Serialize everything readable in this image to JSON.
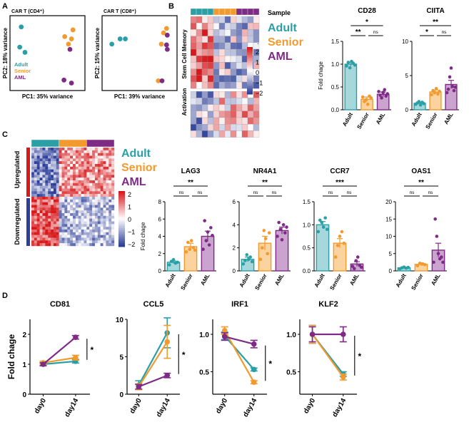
{
  "colors": {
    "adult": "#2a9fa6",
    "senior": "#f29a2e",
    "aml": "#7e2b86",
    "hm_high": "#d7191c",
    "hm_mid": "#ffffff",
    "hm_low": "#2c3e99"
  },
  "panels": {
    "a": "A",
    "b": "B",
    "c": "C",
    "d": "D"
  },
  "groups": [
    "Adult",
    "Senior",
    "AML"
  ],
  "sample_label": "Sample",
  "fold_label": "Fold chage",
  "heatmap_b": {
    "row_groups": [
      "Stem Cell Memory",
      "Activation"
    ],
    "scale_ticks": [
      "2",
      "1",
      "0",
      "−1",
      "−2"
    ],
    "scale_top": "·"
  },
  "heatmap_c": {
    "row_groups": [
      "Upregulated",
      "Downregulated"
    ],
    "scale_ticks": [
      "2",
      "1",
      "0",
      "−1",
      "−2"
    ]
  },
  "chart_data": [
    {
      "id": "pca_cd4",
      "type": "scatter",
      "title": "CAR T (CD4⁺)",
      "xlabel": "PC1: 35% variance",
      "ylabel": "PC2: 18% variance",
      "series": [
        {
          "name": "Adult",
          "x": [
            0.15,
            0.13,
            0.2
          ],
          "y": [
            0.85,
            0.58,
            0.51
          ]
        },
        {
          "name": "Senior",
          "x": [
            0.84,
            0.73,
            0.82,
            0.78
          ],
          "y": [
            0.81,
            0.72,
            0.69,
            0.62
          ]
        },
        {
          "name": "AML",
          "x": [
            0.8,
            0.72,
            0.82
          ],
          "y": [
            0.55,
            0.14,
            0.1
          ]
        }
      ],
      "legend": "bottom-left"
    },
    {
      "id": "pca_cd8",
      "type": "scatter",
      "title": "CAR T (CD8⁺)",
      "xlabel": "PC1: 39% variance",
      "ylabel": "PC2: 15% variance",
      "series": [
        {
          "name": "Adult",
          "x": [
            0.13,
            0.24,
            0.31
          ],
          "y": [
            0.62,
            0.69,
            0.69
          ]
        },
        {
          "name": "Senior",
          "x": [
            0.86,
            0.82,
            0.79,
            0.75
          ],
          "y": [
            0.83,
            0.77,
            0.62,
            0.13
          ]
        },
        {
          "name": "AML",
          "x": [
            0.87,
            0.86,
            0.87,
            0.8
          ],
          "y": [
            0.74,
            0.61,
            0.55,
            0.13
          ]
        }
      ]
    },
    {
      "id": "cd28",
      "type": "bar",
      "title": "CD28",
      "categories": [
        "Adult",
        "Senior",
        "AML"
      ],
      "values": [
        1.0,
        0.23,
        0.34
      ],
      "errors": [
        0.04,
        0.05,
        0.05
      ],
      "ylim": [
        0,
        1.5
      ],
      "yticks": [
        "0.0",
        "0.5",
        "1.0",
        "1.5"
      ],
      "points": [
        [
          0.96,
          1.04,
          0.92,
          1.06,
          1.02,
          0.98
        ],
        [
          0.28,
          0.18,
          0.22,
          0.12,
          0.3,
          0.26
        ],
        [
          0.4,
          0.32,
          0.26,
          0.38,
          0.44,
          0.3,
          0.35
        ]
      ],
      "sig": [
        {
          "from": 0,
          "to": 2,
          "label": "*",
          "level": 2
        },
        {
          "from": 0,
          "to": 1,
          "label": "**",
          "level": 1
        },
        {
          "from": 1,
          "to": 2,
          "label": "ns",
          "level": 1
        }
      ]
    },
    {
      "id": "ciita",
      "type": "bar",
      "title": "CIITA",
      "categories": [
        "Adult",
        "Senior",
        "AML"
      ],
      "values": [
        0.95,
        2.6,
        3.7
      ],
      "errors": [
        0.15,
        0.3,
        0.6
      ],
      "ylim": [
        0,
        10
      ],
      "yticks": [
        "0",
        "5",
        "10"
      ],
      "points": [
        [
          0.8,
          1.0,
          1.2,
          0.7,
          1.1,
          0.9
        ],
        [
          2.2,
          2.8,
          2.5,
          3.1,
          2.3,
          2.7
        ],
        [
          2.5,
          3.0,
          4.8,
          6.1,
          3.4,
          2.8,
          3.3
        ]
      ],
      "sig": [
        {
          "from": 0,
          "to": 2,
          "label": "**",
          "level": 2
        },
        {
          "from": 0,
          "to": 1,
          "label": "*",
          "level": 1
        },
        {
          "from": 1,
          "to": 2,
          "label": "ns",
          "level": 1
        }
      ]
    },
    {
      "id": "lag3",
      "type": "bar",
      "title": "LAG3",
      "categories": [
        "Adult",
        "Senior",
        "AML"
      ],
      "values": [
        1.0,
        2.8,
        4.0
      ],
      "errors": [
        0.15,
        0.4,
        0.6
      ],
      "ylim": [
        0,
        8
      ],
      "yticks": [
        "0",
        "2",
        "4",
        "6",
        "8"
      ],
      "points": [
        [
          0.7,
          1.1,
          1.3,
          0.9,
          1.0
        ],
        [
          2.2,
          3.3,
          2.5,
          3.5,
          2.7,
          2.4
        ],
        [
          2.5,
          5.8,
          3.5,
          4.5,
          3.0,
          5.0,
          4.1
        ]
      ],
      "sig": [
        {
          "from": 0,
          "to": 2,
          "label": "**",
          "level": 2
        },
        {
          "from": 0,
          "to": 1,
          "label": "ns",
          "level": 1
        },
        {
          "from": 1,
          "to": 2,
          "label": "ns",
          "level": 1
        }
      ]
    },
    {
      "id": "nr4a1",
      "type": "bar",
      "title": "NR4A1",
      "categories": [
        "Adult",
        "Senior",
        "AML"
      ],
      "values": [
        1.0,
        2.4,
        3.5
      ],
      "errors": [
        0.2,
        0.6,
        0.3
      ],
      "ylim": [
        0,
        6
      ],
      "yticks": [
        "0",
        "2",
        "4",
        "6"
      ],
      "points": [
        [
          0.6,
          0.9,
          1.4,
          1.0,
          1.2,
          0.8
        ],
        [
          1.0,
          2.0,
          3.5,
          2.8,
          1.5,
          3.3
        ],
        [
          3.0,
          4.2,
          3.6,
          2.7,
          4.0,
          3.3,
          3.8
        ]
      ],
      "sig": [
        {
          "from": 0,
          "to": 2,
          "label": "**",
          "level": 2
        },
        {
          "from": 0,
          "to": 1,
          "label": "ns",
          "level": 1
        },
        {
          "from": 1,
          "to": 2,
          "label": "ns",
          "level": 1
        }
      ]
    },
    {
      "id": "ccr7",
      "type": "bar",
      "title": "CCR7",
      "categories": [
        "Adult",
        "Senior",
        "AML"
      ],
      "values": [
        1.0,
        0.6,
        0.15
      ],
      "errors": [
        0.07,
        0.1,
        0.05
      ],
      "ylim": [
        0,
        1.5
      ],
      "yticks": [
        "0.0",
        "0.5",
        "1.0",
        "1.5"
      ],
      "points": [
        [
          0.85,
          1.1,
          1.05,
          0.95,
          1.15,
          0.9
        ],
        [
          0.3,
          0.55,
          0.75,
          0.85,
          0.6
        ],
        [
          0.1,
          0.05,
          0.22,
          0.3,
          0.12,
          0.08
        ]
      ],
      "sig": [
        {
          "from": 0,
          "to": 2,
          "label": "***",
          "level": 2
        },
        {
          "from": 0,
          "to": 1,
          "label": "ns",
          "level": 1
        },
        {
          "from": 1,
          "to": 2,
          "label": "ns",
          "level": 1
        }
      ]
    },
    {
      "id": "oas1",
      "type": "bar",
      "title": "OAS1",
      "categories": [
        "Adult",
        "Senior",
        "AML"
      ],
      "values": [
        0.9,
        1.9,
        6.0
      ],
      "errors": [
        0.15,
        0.4,
        2.0
      ],
      "ylim": [
        0,
        20
      ],
      "yticks": [
        "0",
        "5",
        "10",
        "15",
        "20"
      ],
      "points": [
        [
          0.6,
          0.9,
          1.1,
          0.8,
          1.0
        ],
        [
          1.5,
          2.2,
          2.0,
          1.8
        ],
        [
          2.5,
          15.0,
          10.0,
          5.0,
          3.5,
          4.0,
          2.5
        ]
      ],
      "sig": [
        {
          "from": 0,
          "to": 2,
          "label": "**",
          "level": 2
        },
        {
          "from": 0,
          "to": 1,
          "label": "ns",
          "level": 1
        },
        {
          "from": 1,
          "to": 2,
          "label": "ns",
          "level": 1
        }
      ]
    },
    {
      "id": "cd81",
      "type": "line",
      "title": "CD81",
      "x": [
        "day0",
        "day14"
      ],
      "ylim": [
        0,
        2.5
      ],
      "yticks": [
        "0",
        "1",
        "2"
      ],
      "series": [
        {
          "name": "Adult",
          "values": [
            1.0,
            1.1
          ],
          "errors": [
            0.05,
            0.06
          ]
        },
        {
          "name": "Senior",
          "values": [
            1.05,
            1.22
          ],
          "errors": [
            0.05,
            0.08
          ]
        },
        {
          "name": "AML",
          "values": [
            1.0,
            1.9
          ],
          "errors": [
            0.05,
            0.06
          ]
        }
      ],
      "sig": "*"
    },
    {
      "id": "ccl5",
      "type": "line",
      "title": "CCL5",
      "x": [
        "day0",
        "day14"
      ],
      "ylim": [
        0,
        10
      ],
      "yticks": [
        "0",
        "5",
        "10"
      ],
      "series": [
        {
          "name": "Adult",
          "values": [
            1.2,
            8.2
          ],
          "errors": [
            0.6,
            2.0
          ]
        },
        {
          "name": "Senior",
          "values": [
            1.0,
            7.0
          ],
          "errors": [
            0.4,
            2.2
          ]
        },
        {
          "name": "AML",
          "values": [
            1.0,
            2.5
          ],
          "errors": [
            0.3,
            0.3
          ]
        }
      ],
      "sig": "*"
    },
    {
      "id": "irf1",
      "type": "line",
      "title": "IRF1",
      "x": [
        "day0",
        "day14"
      ],
      "ylim": [
        0.2,
        1.2
      ],
      "yticks": [
        "0.5",
        "1.0"
      ],
      "series": [
        {
          "name": "Adult",
          "values": [
            0.98,
            0.53
          ],
          "errors": [
            0.05,
            0.02
          ]
        },
        {
          "name": "Senior",
          "values": [
            1.05,
            0.36
          ],
          "errors": [
            0.05,
            0.02
          ]
        },
        {
          "name": "AML",
          "values": [
            0.97,
            0.87
          ],
          "errors": [
            0.05,
            0.05
          ]
        }
      ],
      "sig": "*"
    },
    {
      "id": "klf2",
      "type": "line",
      "title": "KLF2",
      "x": [
        "day0",
        "day14"
      ],
      "ylim": [
        0.2,
        1.2
      ],
      "yticks": [
        "0.5",
        "1.0"
      ],
      "series": [
        {
          "name": "Adult",
          "values": [
            1.0,
            0.47
          ],
          "errors": [
            0.12,
            0.03
          ]
        },
        {
          "name": "Senior",
          "values": [
            1.0,
            0.43
          ],
          "errors": [
            0.12,
            0.04
          ]
        },
        {
          "name": "AML",
          "values": [
            1.0,
            1.0
          ],
          "errors": [
            0.1,
            0.1
          ]
        }
      ],
      "sig": "*"
    }
  ]
}
